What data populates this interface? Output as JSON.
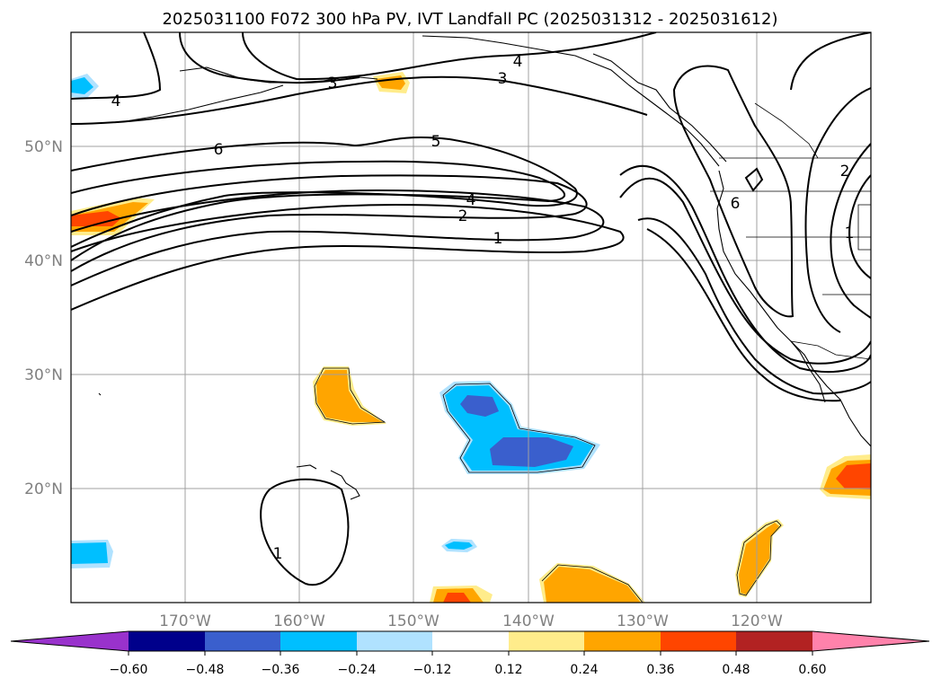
{
  "title": "2025031100 F072 300 hPa PV, IVT Landfall PC (2025031312 - 2025031612)",
  "map": {
    "lon_range": [
      -180,
      -110
    ],
    "lat_range": [
      10,
      60
    ],
    "grid": true,
    "lon_ticks": [
      "170°W",
      "160°W",
      "150°W",
      "140°W",
      "130°W",
      "120°W"
    ],
    "lat_ticks": [
      "50°N",
      "40°N",
      "30°N",
      "20°N"
    ]
  },
  "colorbar": {
    "ticks": [
      "−0.60",
      "−0.48",
      "−0.36",
      "−0.24",
      "−0.12",
      "0.12",
      "0.24",
      "0.36",
      "0.48",
      "0.60"
    ],
    "colors": [
      "#9932cc",
      "#00008b",
      "#3a5fcd",
      "#00bfff",
      "#b0e2ff",
      "#ffffff",
      "#ffec8b",
      "#ffa500",
      "#ff4500",
      "#b22222",
      "#ff82ab"
    ]
  },
  "contour_labels": [
    "4",
    "3",
    "4",
    "3",
    "6",
    "5",
    "4",
    "2",
    "1",
    "6",
    "2",
    "1",
    "1"
  ]
}
